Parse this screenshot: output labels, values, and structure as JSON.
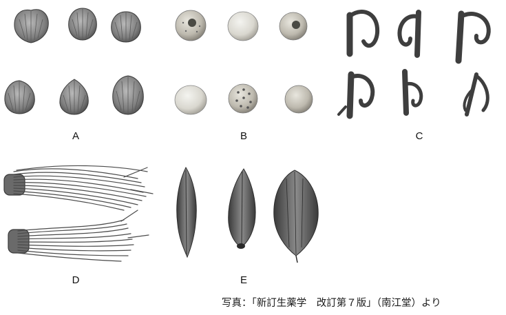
{
  "labels": {
    "a": "A",
    "b": "B",
    "c": "C",
    "d": "D",
    "e": "E"
  },
  "credit": "写真：「新訂生薬学　改訂第７版」（南江堂）より",
  "colors": {
    "ink": "#111111",
    "background": "#ffffff"
  }
}
